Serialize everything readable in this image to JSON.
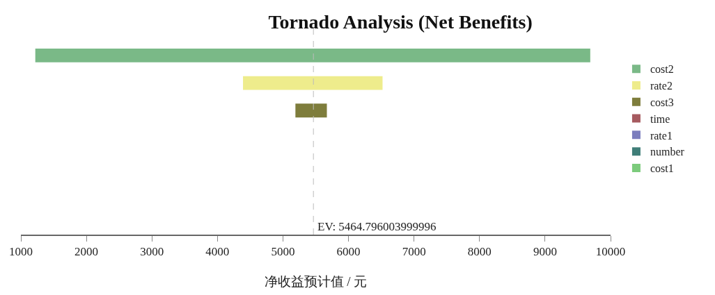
{
  "chart_data": {
    "type": "bar",
    "orientation": "horizontal",
    "title": "Tornado Analysis (Net Benefits)",
    "xlabel": "净收益预计值 / 元",
    "categories": [
      null,
      null,
      null,
      null,
      null,
      null,
      null
    ],
    "series": [
      {
        "name": "cost2",
        "color": "#7ab987",
        "values": [
          8470,
          null,
          null,
          null,
          null,
          null,
          null
        ],
        "base": [
          1220,
          null,
          null,
          null,
          null,
          null,
          null
        ]
      },
      {
        "name": "rate2",
        "color": "#eeec8c",
        "values": [
          null,
          2130,
          null,
          null,
          null,
          null,
          null
        ],
        "base": [
          null,
          4390,
          null,
          null,
          null,
          null,
          null
        ]
      },
      {
        "name": "cost3",
        "color": "#7e7d3c",
        "values": [
          null,
          null,
          480,
          null,
          null,
          null,
          null
        ],
        "base": [
          null,
          null,
          5190,
          null,
          null,
          null,
          null
        ]
      },
      {
        "name": "time",
        "color": "#a65a5f",
        "values": [
          null,
          null,
          null,
          null,
          null,
          null,
          null
        ]
      },
      {
        "name": "rate1",
        "color": "#7b7dbd",
        "values": [
          null,
          null,
          null,
          null,
          null,
          null,
          null
        ]
      },
      {
        "name": "number",
        "color": "#3f7e78",
        "values": [
          null,
          null,
          null,
          null,
          null,
          null,
          null
        ]
      },
      {
        "name": "cost1",
        "color": "#7ccb7c",
        "values": [
          null,
          null,
          null,
          null,
          null,
          null,
          null
        ]
      }
    ],
    "xlim": [
      1000,
      10000
    ],
    "xticks": [
      1000,
      2000,
      3000,
      4000,
      5000,
      6000,
      7000,
      8000,
      9000,
      10000
    ],
    "ref_lines": [
      {
        "axis": "x",
        "value": 5464.796003999996,
        "label": "EV: 5464.796003999996",
        "color": "#bbbbbb",
        "line_style": "dashed"
      }
    ],
    "legend": "right"
  }
}
